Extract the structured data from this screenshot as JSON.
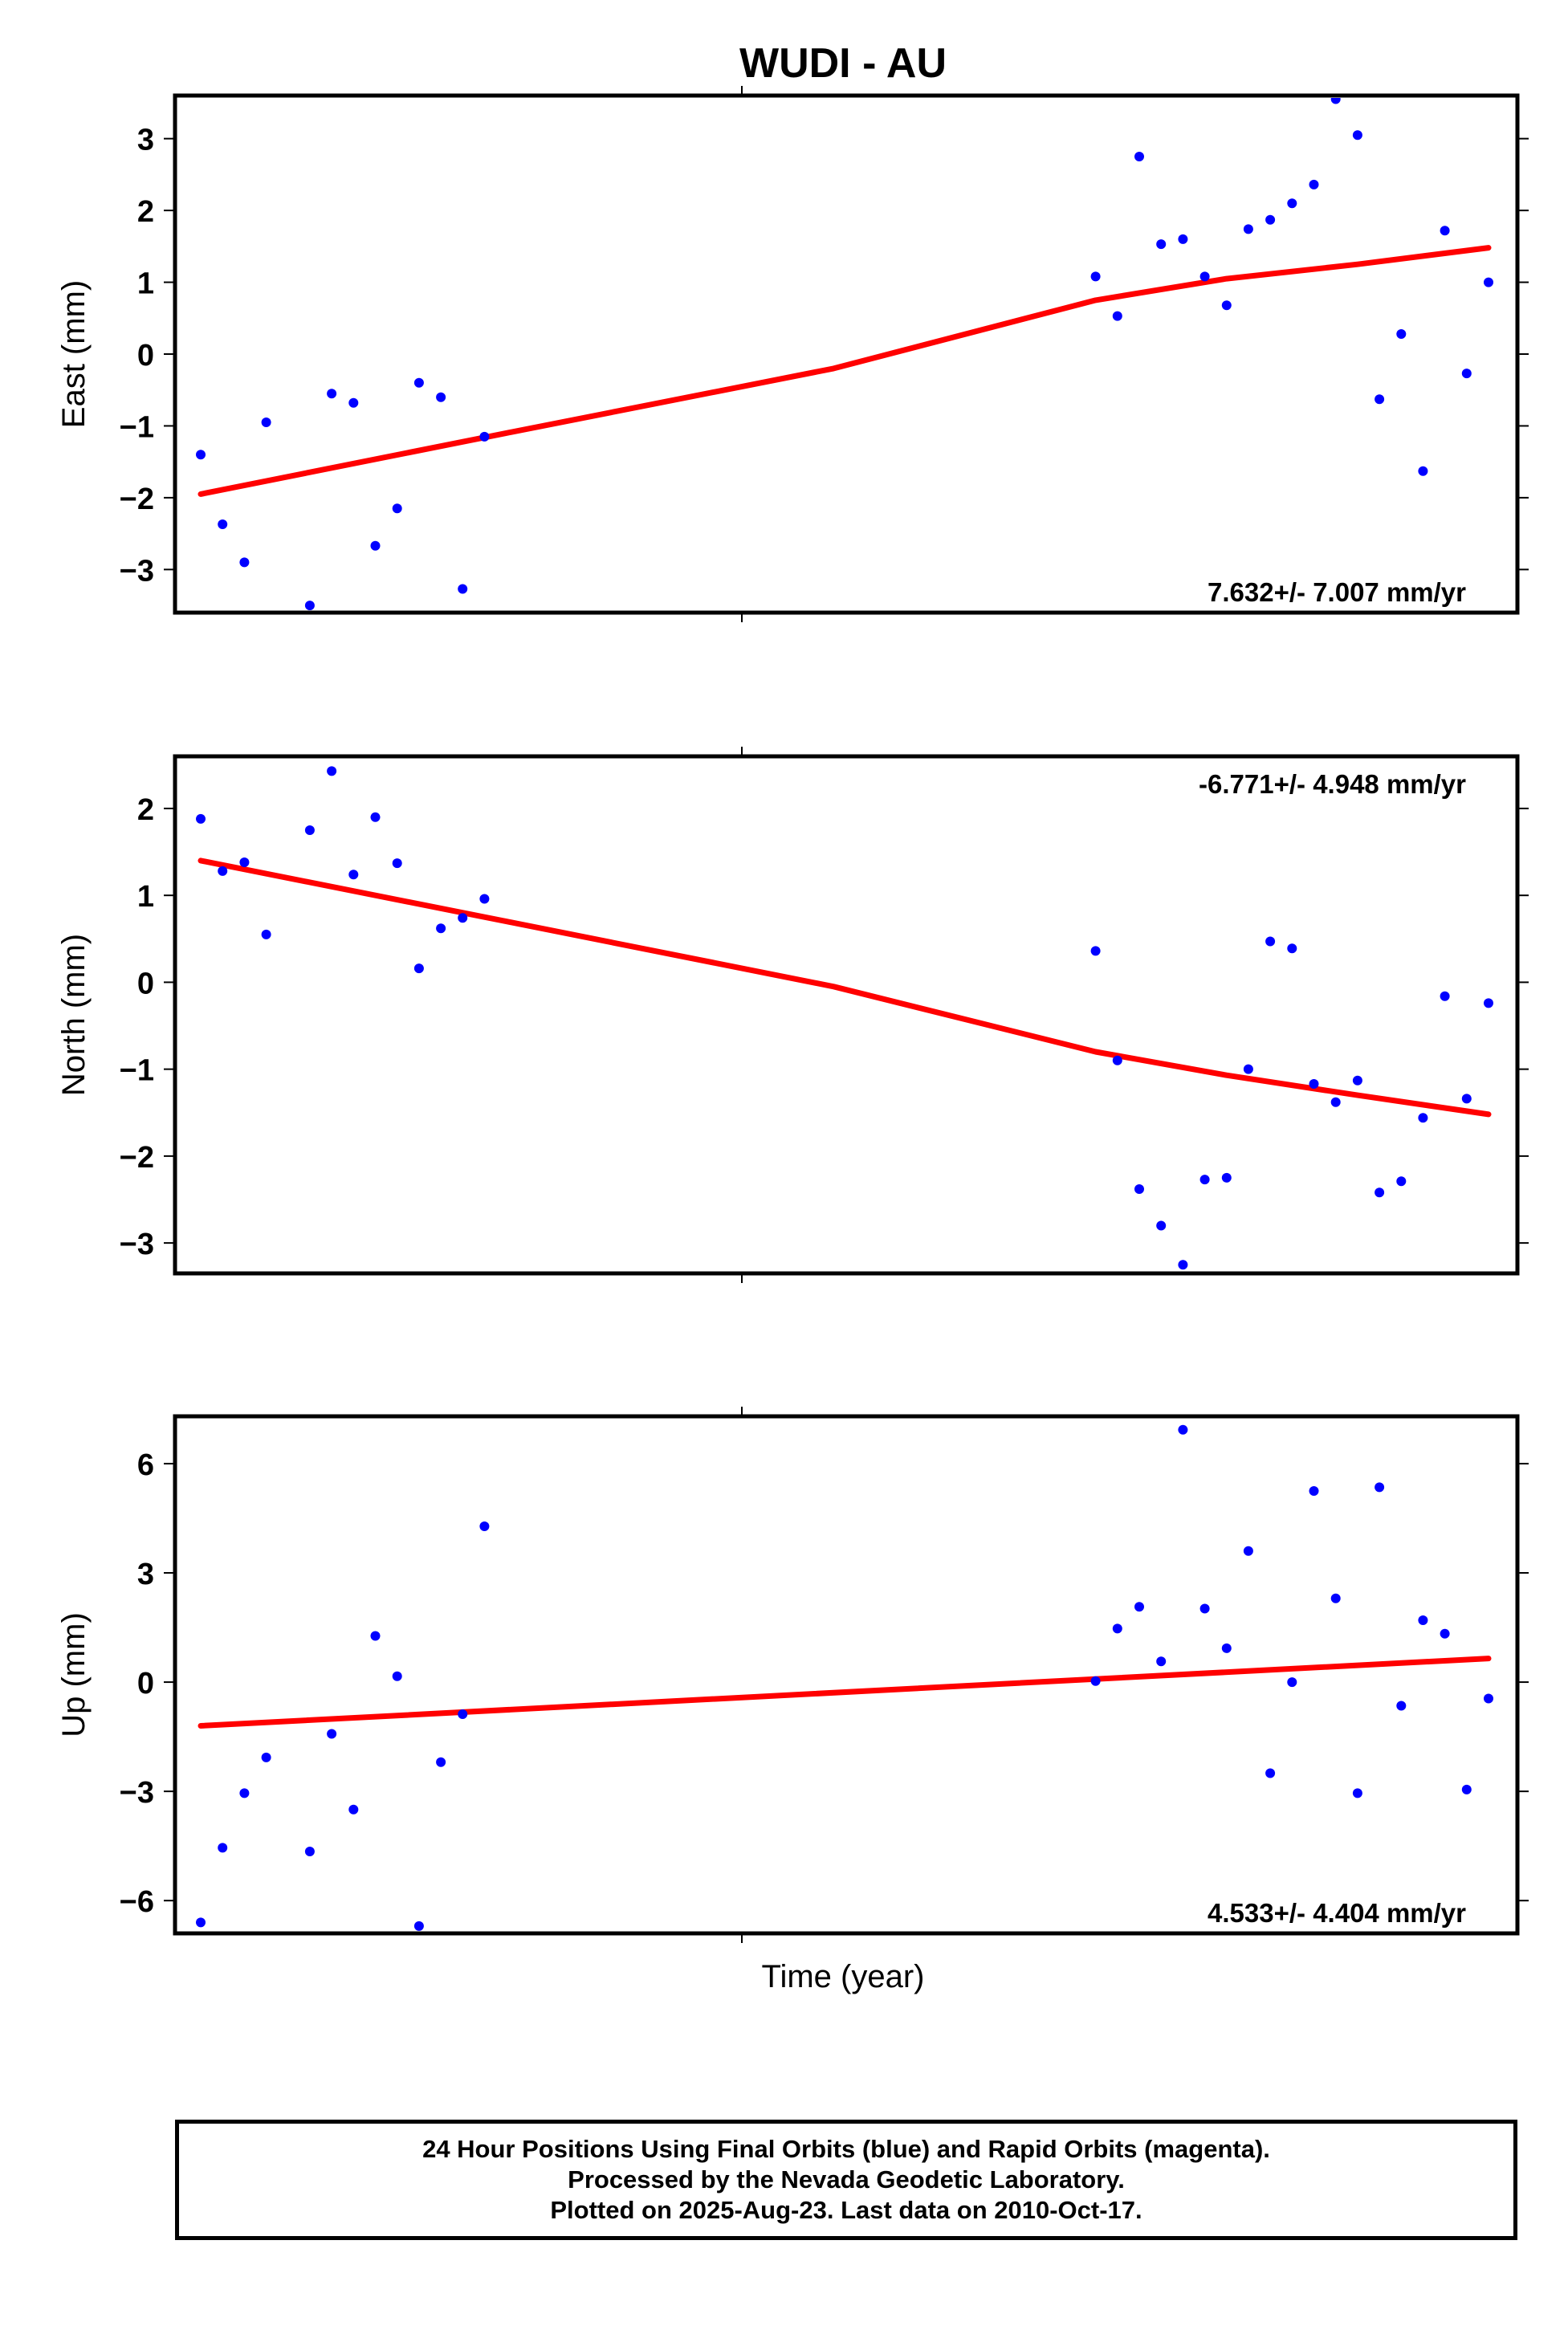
{
  "title": "WUDI - AU",
  "xlabel": "Time (year)",
  "colors": {
    "final_orbits": "#0000ff",
    "trend": "#ff0000",
    "frame": "#000000"
  },
  "chart_data": [
    {
      "type": "scatter",
      "ylabel": "East (mm)",
      "ylim": [
        -3.6,
        3.6
      ],
      "yticks": [
        -3,
        -2,
        -1,
        0,
        1,
        2,
        3
      ],
      "ytick_labels": [
        "−3",
        "−2",
        "−1",
        "0",
        "1",
        "2",
        "3"
      ],
      "rate": "7.632+/- 7.007 mm/yr",
      "series": [
        {
          "points": [
            [
              1,
              -1.4
            ],
            [
              2,
              -2.37
            ],
            [
              3,
              -2.9
            ],
            [
              4,
              -0.95
            ],
            [
              6,
              -3.5
            ],
            [
              7,
              -0.55
            ],
            [
              8,
              -0.68
            ],
            [
              9,
              -2.67
            ],
            [
              10,
              -2.15
            ],
            [
              11,
              -0.4
            ],
            [
              12,
              -0.6
            ],
            [
              13,
              -3.27
            ],
            [
              14,
              -1.15
            ],
            [
              42,
              1.08
            ],
            [
              43,
              0.53
            ],
            [
              44,
              2.75
            ],
            [
              45,
              1.53
            ],
            [
              46,
              1.6
            ],
            [
              47,
              1.08
            ],
            [
              48,
              0.68
            ],
            [
              49,
              1.74
            ],
            [
              50,
              1.87
            ],
            [
              51,
              2.1
            ],
            [
              52,
              2.36
            ],
            [
              53,
              3.55
            ],
            [
              54,
              3.05
            ],
            [
              55,
              -0.63
            ],
            [
              56,
              0.28
            ],
            [
              57,
              -1.63
            ],
            [
              58,
              1.72
            ],
            [
              59,
              -0.27
            ],
            [
              60,
              1.0
            ]
          ]
        }
      ],
      "trend": [
        [
          1,
          -1.95
        ],
        [
          15,
          -1.1
        ],
        [
          30,
          -0.2
        ],
        [
          42,
          0.75
        ],
        [
          48,
          1.05
        ],
        [
          54,
          1.25
        ],
        [
          60,
          1.48
        ]
      ]
    },
    {
      "type": "scatter",
      "ylabel": "North (mm)",
      "ylim": [
        -3.35,
        2.6
      ],
      "yticks": [
        -3,
        -2,
        -1,
        0,
        1,
        2
      ],
      "ytick_labels": [
        "−3",
        "−2",
        "−1",
        "0",
        "1",
        "2"
      ],
      "rate": "-6.771+/- 4.948 mm/yr",
      "series": [
        {
          "points": [
            [
              1,
              1.88
            ],
            [
              2,
              1.28
            ],
            [
              3,
              1.38
            ],
            [
              4,
              0.55
            ],
            [
              6,
              1.75
            ],
            [
              7,
              2.43
            ],
            [
              8,
              1.24
            ],
            [
              9,
              1.9
            ],
            [
              10,
              1.37
            ],
            [
              11,
              0.16
            ],
            [
              12,
              0.62
            ],
            [
              13,
              0.74
            ],
            [
              14,
              0.96
            ],
            [
              42,
              0.36
            ],
            [
              43,
              -0.9
            ],
            [
              44,
              -2.38
            ],
            [
              45,
              -2.8
            ],
            [
              46,
              -3.25
            ],
            [
              47,
              -2.27
            ],
            [
              48,
              -2.25
            ],
            [
              49,
              -1.0
            ],
            [
              50,
              0.47
            ],
            [
              51,
              0.39
            ],
            [
              52,
              -1.17
            ],
            [
              53,
              -1.38
            ],
            [
              54,
              -1.13
            ],
            [
              55,
              -2.42
            ],
            [
              56,
              -2.29
            ],
            [
              57,
              -1.56
            ],
            [
              58,
              -0.16
            ],
            [
              59,
              -1.34
            ],
            [
              60,
              -0.24
            ]
          ]
        }
      ],
      "trend": [
        [
          1,
          1.4
        ],
        [
          15,
          0.7
        ],
        [
          30,
          -0.05
        ],
        [
          42,
          -0.8
        ],
        [
          48,
          -1.07
        ],
        [
          54,
          -1.3
        ],
        [
          60,
          -1.52
        ]
      ]
    },
    {
      "type": "scatter",
      "ylabel": "Up (mm)",
      "ylim": [
        -6.9,
        7.3
      ],
      "yticks": [
        -6,
        -3,
        0,
        3,
        6
      ],
      "ytick_labels": [
        "−6",
        "−3",
        "0",
        "3",
        "6"
      ],
      "rate": "4.533+/- 4.404 mm/yr",
      "series": [
        {
          "points": [
            [
              1,
              -6.6
            ],
            [
              2,
              -4.55
            ],
            [
              3,
              -3.05
            ],
            [
              4,
              -2.07
            ],
            [
              6,
              -4.65
            ],
            [
              7,
              -1.42
            ],
            [
              8,
              -3.5
            ],
            [
              9,
              1.27
            ],
            [
              10,
              0.16
            ],
            [
              11,
              -6.7
            ],
            [
              12,
              -2.2
            ],
            [
              13,
              -0.88
            ],
            [
              14,
              4.28
            ],
            [
              42,
              0.03
            ],
            [
              43,
              1.47
            ],
            [
              44,
              2.07
            ],
            [
              45,
              0.57
            ],
            [
              46,
              6.93
            ],
            [
              47,
              2.02
            ],
            [
              48,
              0.93
            ],
            [
              49,
              3.6
            ],
            [
              50,
              -2.5
            ],
            [
              51,
              0.0
            ],
            [
              52,
              5.25
            ],
            [
              53,
              2.3
            ],
            [
              54,
              -3.05
            ],
            [
              55,
              5.35
            ],
            [
              56,
              -0.65
            ],
            [
              57,
              1.7
            ],
            [
              58,
              1.33
            ],
            [
              59,
              -2.95
            ],
            [
              60,
              -0.45
            ]
          ]
        }
      ],
      "trend": [
        [
          1,
          -1.2
        ],
        [
          60,
          0.65
        ]
      ]
    }
  ],
  "footer": {
    "line1": "24 Hour Positions Using Final Orbits (blue) and Rapid Orbits (magenta).",
    "line2": "Processed by the Nevada Geodetic Laboratory.",
    "line3": "Plotted on 2025-Aug-23. Last data on 2010-Oct-17."
  }
}
